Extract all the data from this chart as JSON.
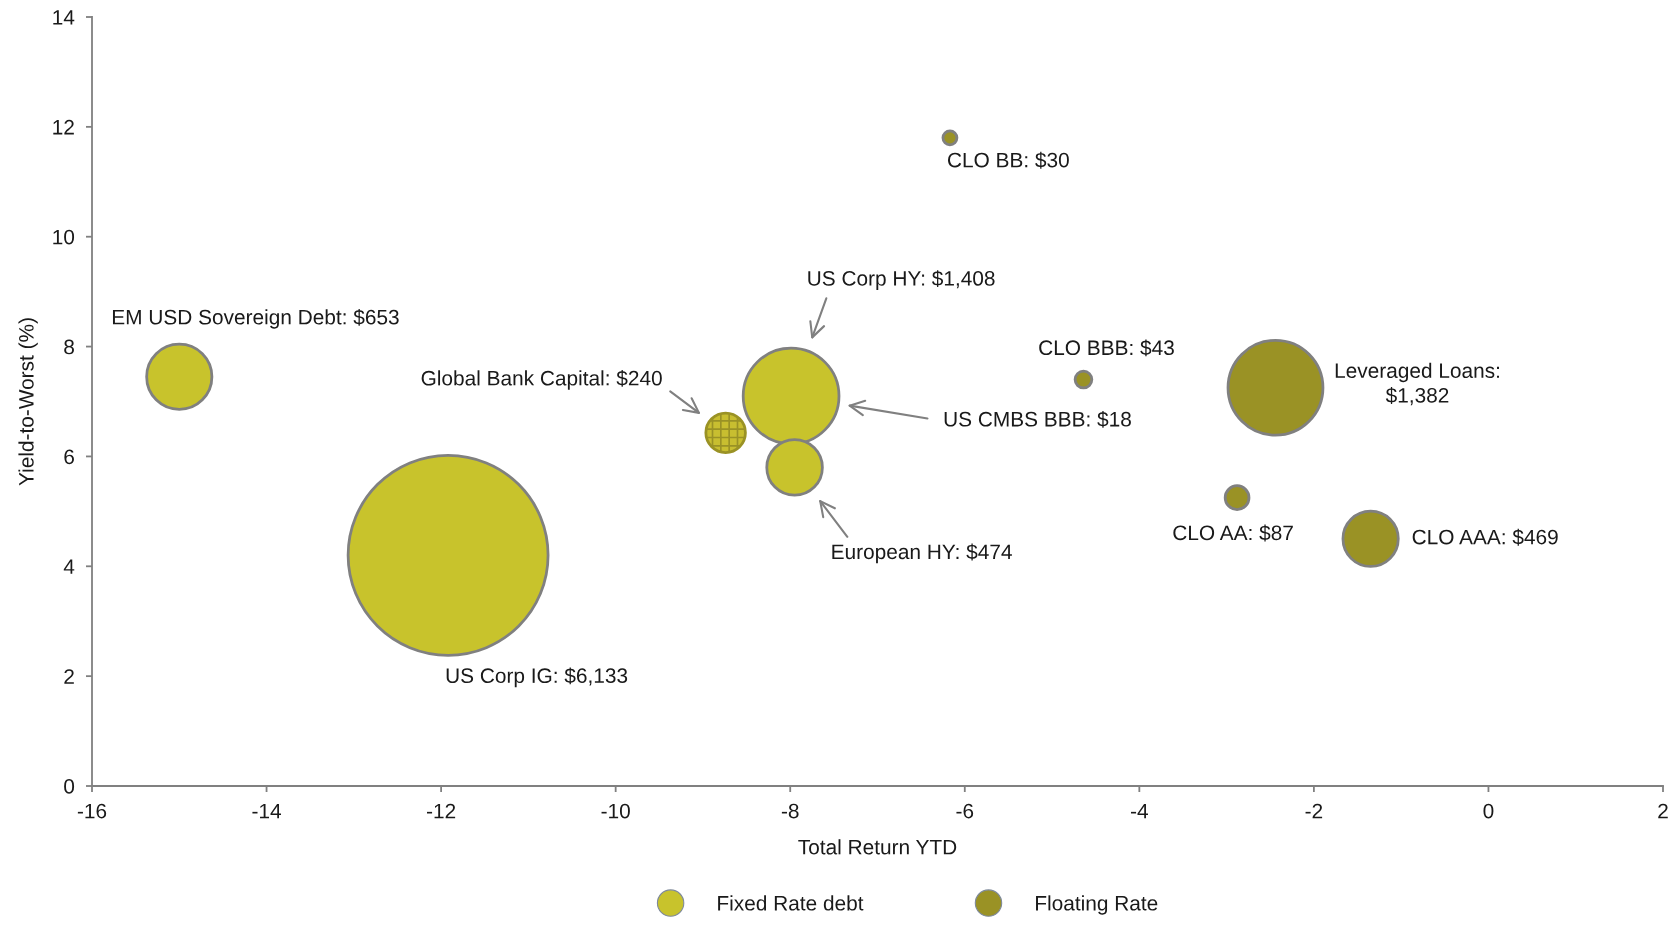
{
  "chart_data": {
    "type": "bubble",
    "xlabel": "Total Return YTD",
    "ylabel": "Yield-to-Worst (%)",
    "xlim": [
      -16,
      2
    ],
    "ylim": [
      0,
      14
    ],
    "xticks": [
      -16,
      -14,
      -12,
      -10,
      -8,
      -6,
      -4,
      -2,
      0,
      2
    ],
    "yticks": [
      0,
      2,
      4,
      6,
      8,
      10,
      12,
      14
    ],
    "grid": false,
    "legend": "bottom",
    "series": [
      {
        "name": "Fixed Rate debt",
        "color": "#c8c32c",
        "x": [
          -15.0,
          -11.92,
          -7.99,
          -7.95
        ],
        "values": [
          7.45,
          4.2,
          7.1,
          5.8
        ],
        "sizes": [
          653,
          6133,
          1408,
          474
        ],
        "value_labels": [
          "EM USD Sovereign Debt: $653",
          "US Corp IG: $6,133",
          "US Corp HY: $1,408",
          "European HY: $474"
        ]
      },
      {
        "name": "Floating Rate",
        "color": "#9a9225",
        "x": [
          -6.17,
          -4.64,
          -2.44,
          -2.88,
          -1.35
        ],
        "values": [
          11.8,
          7.4,
          7.25,
          5.25,
          4.5
        ],
        "sizes": [
          30,
          43,
          1382,
          87,
          469
        ],
        "value_labels": [
          "CLO BB: $30",
          "CLO BBB: $43",
          "Leveraged Loans:\n$1,382",
          "CLO AA: $87",
          "CLO AAA: $469"
        ]
      },
      {
        "color": "#9a9225",
        "x": [
          -8.74
        ],
        "values": [
          6.43
        ],
        "sizes": [
          240
        ],
        "value_labels": [
          "Global Bank Capital: $240"
        ]
      }
    ],
    "annotations": [
      "US CMBS BBB: $18"
    ]
  }
}
